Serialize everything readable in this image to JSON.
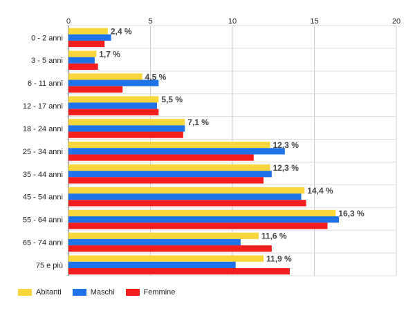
{
  "chart_data": {
    "type": "bar",
    "orientation": "horizontal",
    "categories": [
      "0 - 2 anni",
      "3 - 5 anni",
      "6 - 11 anni",
      "12 - 17 anni",
      "18 - 24 anni",
      "25 - 34 anni",
      "35 - 44 anni",
      "45 - 54 anni",
      "55 - 64 anni",
      "65 - 74 anni",
      "75 e più"
    ],
    "series": [
      {
        "name": "Abitanti",
        "color": "#f9d63c",
        "values": [
          2.4,
          1.7,
          4.5,
          5.5,
          7.1,
          12.3,
          12.3,
          14.4,
          16.3,
          11.6,
          11.9
        ]
      },
      {
        "name": "Maschi",
        "color": "#1e73e8",
        "values": [
          2.6,
          1.6,
          5.5,
          5.4,
          7.1,
          13.2,
          12.4,
          14.2,
          16.5,
          10.5,
          10.2
        ]
      },
      {
        "name": "Femmine",
        "color": "#f51e1e",
        "values": [
          2.2,
          1.8,
          3.3,
          5.5,
          7.0,
          11.3,
          11.9,
          14.5,
          15.8,
          12.4,
          13.5
        ]
      }
    ],
    "data_labels": [
      "2,4 %",
      "1,7 %",
      "4,5 %",
      "5,5 %",
      "7,1 %",
      "12,3 %",
      "12,3 %",
      "14,4 %",
      "16,3 %",
      "11,6 %",
      "11,9 %"
    ],
    "x_ticks": [
      "0",
      "5",
      "10",
      "15",
      "20"
    ],
    "xlim": [
      0,
      20
    ],
    "title": "",
    "xlabel": "",
    "ylabel": "",
    "grid": true,
    "legend_position": "bottom-left"
  }
}
